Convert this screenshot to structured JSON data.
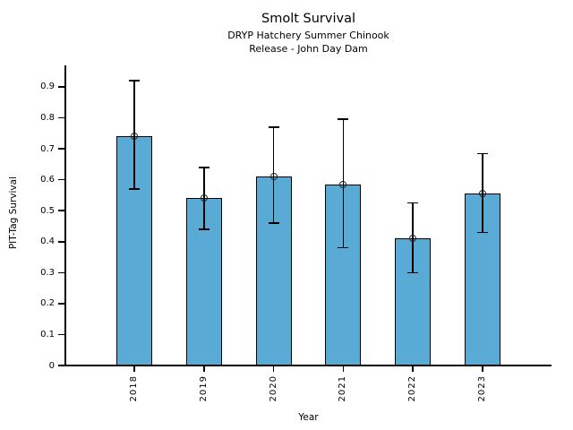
{
  "chart_data": {
    "type": "bar",
    "title": "Smolt Survival",
    "subtitle_line1": "DRYP Hatchery Summer Chinook",
    "subtitle_line2": "Release - John Day Dam",
    "xlabel": "Year",
    "ylabel": "PIT-Tag Survival",
    "categories": [
      "2018",
      "2019",
      "2020",
      "2021",
      "2022",
      "2023"
    ],
    "values": [
      0.74,
      0.54,
      0.61,
      0.585,
      0.41,
      0.555
    ],
    "error_low": [
      0.57,
      0.44,
      0.46,
      0.38,
      0.3,
      0.43
    ],
    "error_high": [
      0.92,
      0.64,
      0.77,
      0.795,
      0.525,
      0.685
    ],
    "yticks": [
      0,
      0.1,
      0.2,
      0.3,
      0.4,
      0.5,
      0.6,
      0.7,
      0.8,
      0.9
    ],
    "ytick_labels": [
      "0",
      "0.1",
      "0.2",
      "0.3",
      "0.4",
      "0.5",
      "0.6",
      "0.7",
      "0.8",
      "0.9"
    ],
    "ylim": [
      0,
      0.969
    ],
    "grid": false,
    "legend": false,
    "bar_color": "#5aaad6",
    "bar_edge_color": "#000000",
    "error_color": "#000000",
    "marker": "open-circle",
    "text_color": "#000000"
  }
}
